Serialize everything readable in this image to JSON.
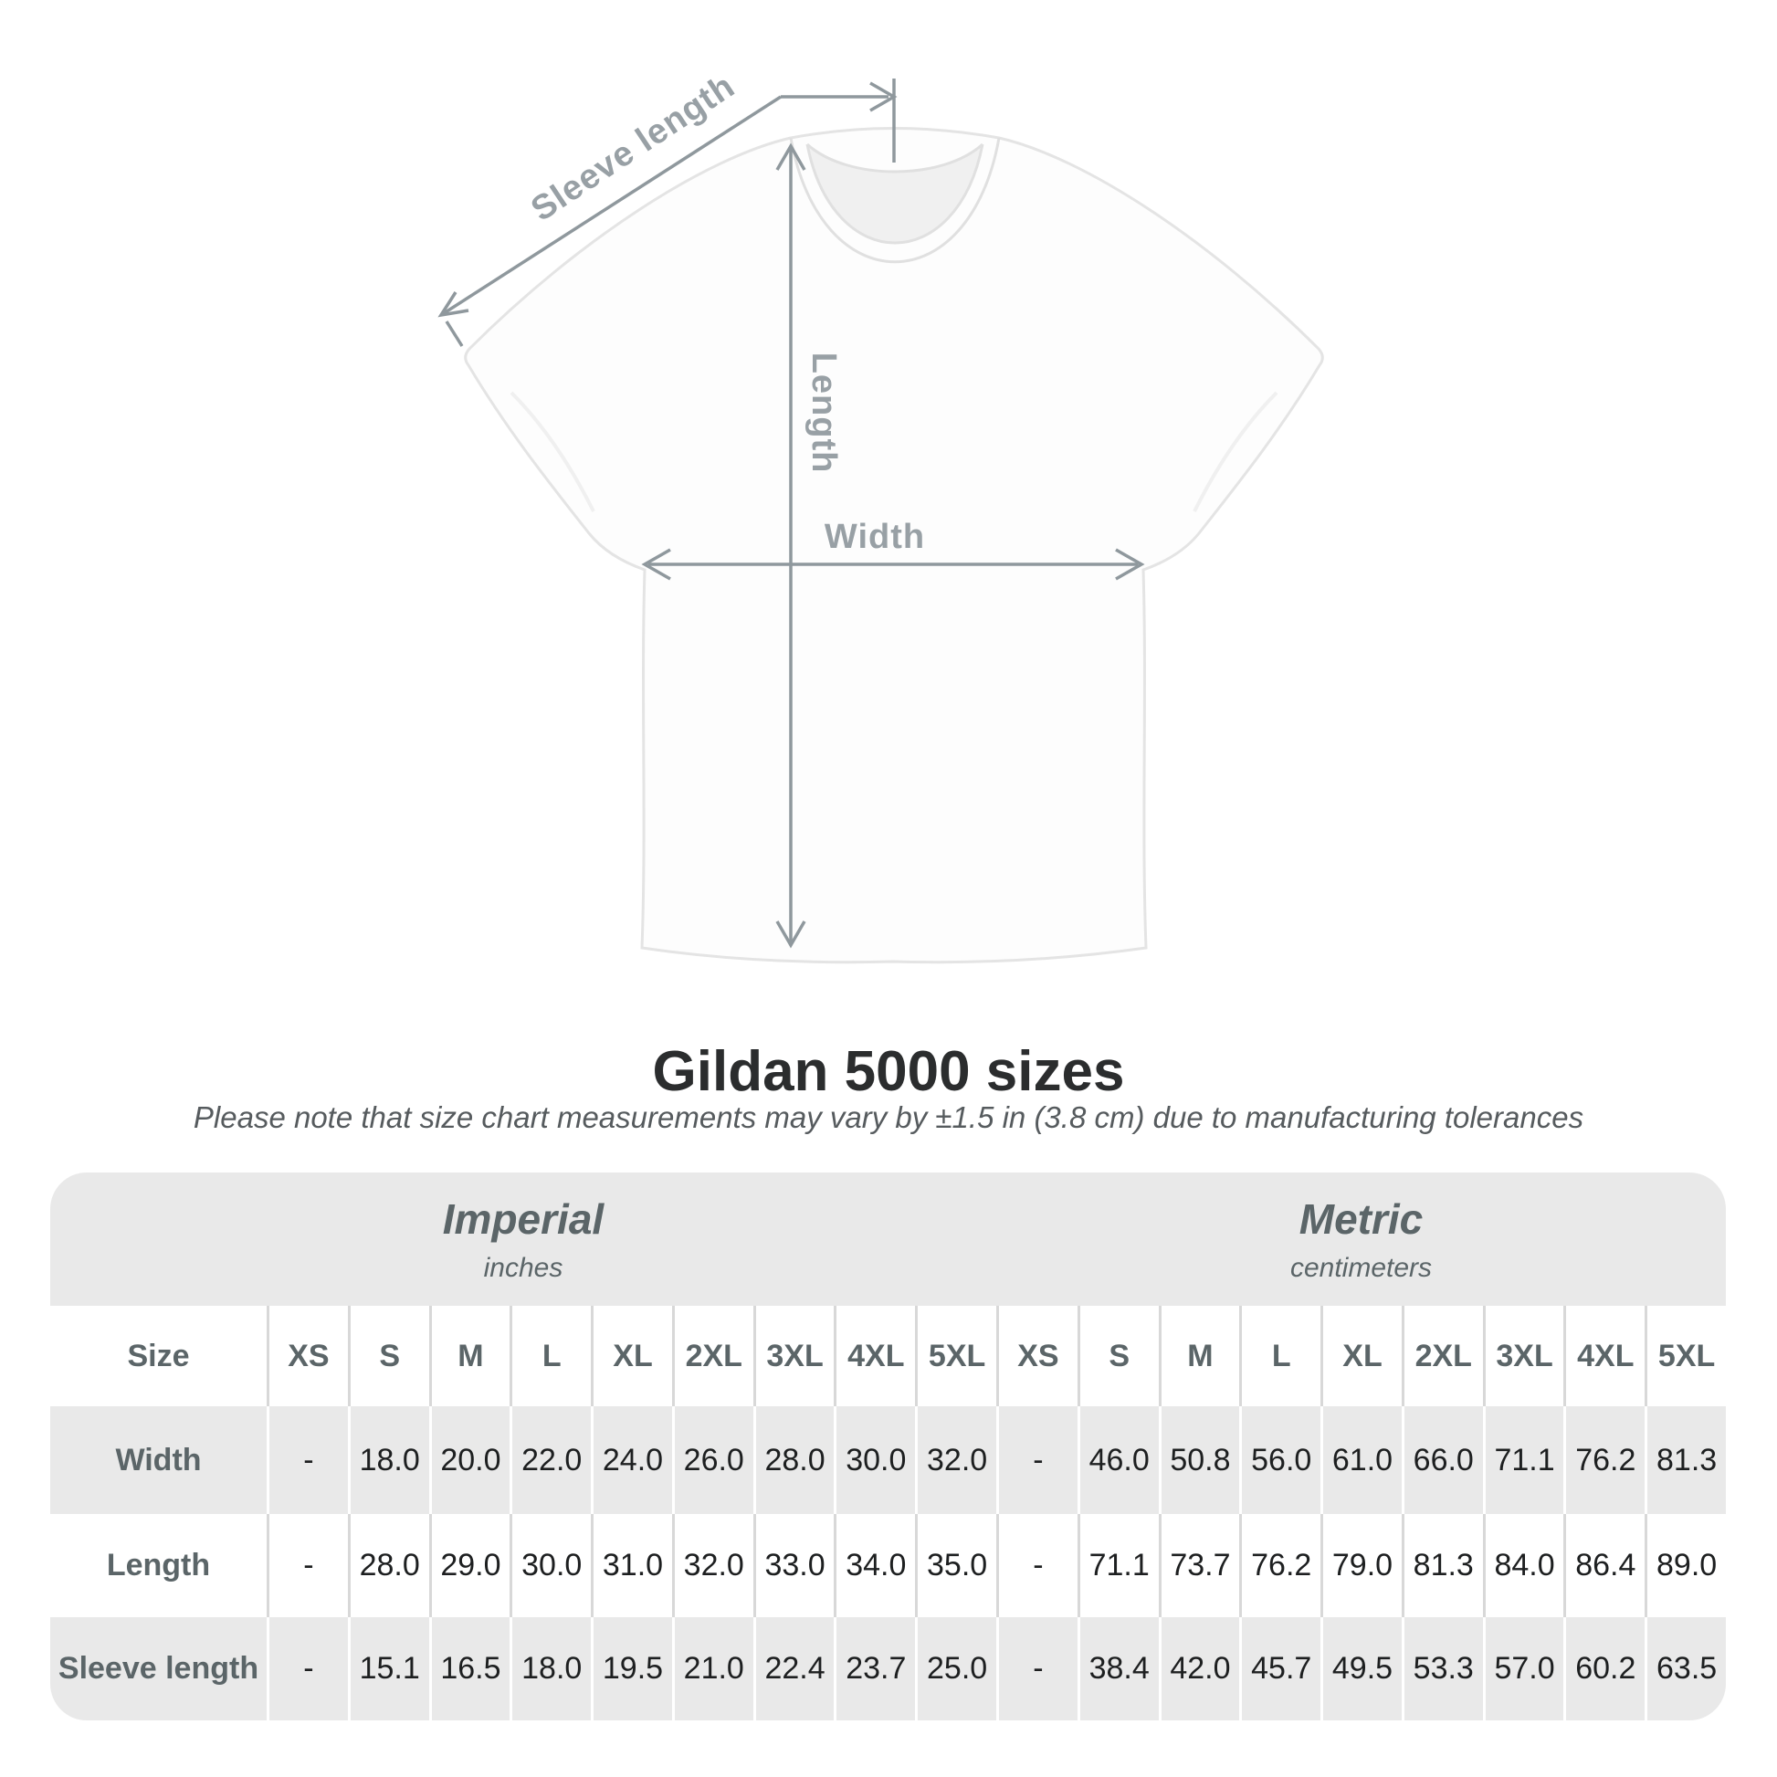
{
  "diagram": {
    "sleeve_length_label": "Sleeve length",
    "length_label": "Length",
    "width_label": "Width"
  },
  "title": "Gildan 5000 sizes",
  "subtitle": "Please note that size chart measurements may vary by ±1.5 in (3.8 cm) due to manufacturing tolerances",
  "table": {
    "size_header": "Size",
    "unit_groups": [
      {
        "name": "Imperial",
        "unit": "inches"
      },
      {
        "name": "Metric",
        "unit": "centimeters"
      }
    ],
    "sizes": [
      "XS",
      "S",
      "M",
      "L",
      "XL",
      "2XL",
      "3XL",
      "4XL",
      "5XL"
    ],
    "rows": [
      {
        "label": "Width",
        "imperial": [
          "-",
          "18.0",
          "20.0",
          "22.0",
          "24.0",
          "26.0",
          "28.0",
          "30.0",
          "32.0"
        ],
        "metric": [
          "-",
          "46.0",
          "50.8",
          "56.0",
          "61.0",
          "66.0",
          "71.1",
          "76.2",
          "81.3"
        ]
      },
      {
        "label": "Length",
        "imperial": [
          "-",
          "28.0",
          "29.0",
          "30.0",
          "31.0",
          "32.0",
          "33.0",
          "34.0",
          "35.0"
        ],
        "metric": [
          "-",
          "71.1",
          "73.7",
          "76.2",
          "79.0",
          "81.3",
          "84.0",
          "86.4",
          "89.0"
        ]
      },
      {
        "label": "Sleeve length",
        "imperial": [
          "-",
          "15.1",
          "16.5",
          "18.0",
          "19.5",
          "21.0",
          "22.4",
          "23.7",
          "25.0"
        ],
        "metric": [
          "-",
          "38.4",
          "42.0",
          "45.7",
          "49.5",
          "53.3",
          "57.0",
          "60.2",
          "63.5"
        ]
      }
    ]
  },
  "colors": {
    "accent_gray_band": "#e9e9e9",
    "label_text": "#5b6568",
    "value_text": "#1d1f20",
    "arrow_gray": "#8f989d",
    "diagram_label": "#98a0a5",
    "title_text": "#2b2d2e",
    "subtitle_text": "#565b5e",
    "sep_light": "#d8d8d8"
  }
}
